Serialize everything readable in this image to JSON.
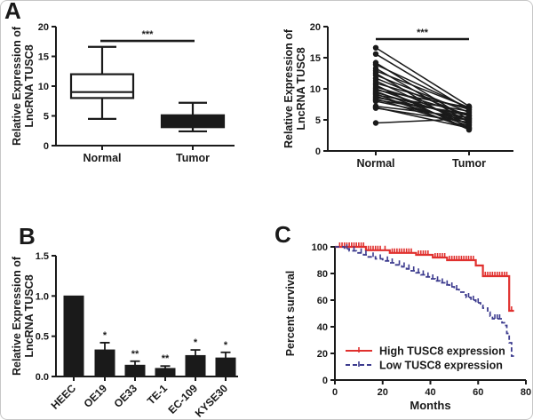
{
  "figure": {
    "panel_labels": {
      "a": "A",
      "b": "B",
      "c": "C"
    },
    "ink_color": "#1a1a1a",
    "border_color": "#c6c6c6"
  },
  "chart_data": [
    {
      "id": "panel-a-boxplot",
      "type": "box",
      "ylabel": [
        "Relative Expression of",
        "LncRNA TUSC8"
      ],
      "ylim": [
        0,
        20
      ],
      "yticks": [
        "0",
        "5",
        "10",
        "15",
        "20"
      ],
      "categories": [
        "Normal",
        "Tumor"
      ],
      "boxes": [
        {
          "category": "Normal",
          "whisker_low": 4.5,
          "q1": 8.0,
          "median": 9.0,
          "q3": 12.0,
          "whisker_high": 16.6,
          "fill": "#ffffff"
        },
        {
          "category": "Tumor",
          "whisker_low": 2.4,
          "q1": 3.1,
          "median": 4.2,
          "q3": 5.1,
          "whisker_high": 7.2,
          "fill": "#1a1a1a"
        }
      ],
      "significance": {
        "label": "***",
        "y": 17.6
      }
    },
    {
      "id": "panel-a-paired",
      "type": "paired-line",
      "ylabel": [
        "Relative Expression of",
        "LncRNA TUSC8"
      ],
      "ylim": [
        0,
        20
      ],
      "yticks": [
        "0",
        "5",
        "10",
        "15",
        "20"
      ],
      "categories": [
        "Normal",
        "Tumor"
      ],
      "pairs": [
        [
          16.6,
          7.2
        ],
        [
          15.6,
          6.6
        ],
        [
          14.2,
          5.0
        ],
        [
          13.9,
          6.9
        ],
        [
          13.3,
          4.6
        ],
        [
          12.9,
          7.0
        ],
        [
          12.5,
          3.6
        ],
        [
          12.2,
          6.2
        ],
        [
          11.7,
          5.6
        ],
        [
          11.3,
          4.2
        ],
        [
          10.9,
          6.7
        ],
        [
          10.6,
          3.4
        ],
        [
          10.3,
          5.8
        ],
        [
          10.0,
          4.8
        ],
        [
          9.8,
          7.0
        ],
        [
          9.6,
          4.0
        ],
        [
          9.4,
          5.2
        ],
        [
          9.2,
          3.5
        ],
        [
          9.0,
          6.4
        ],
        [
          8.8,
          4.4
        ],
        [
          8.6,
          5.7
        ],
        [
          8.4,
          3.8
        ],
        [
          8.2,
          6.0
        ],
        [
          8.0,
          4.9
        ],
        [
          7.2,
          5.4
        ],
        [
          7.0,
          3.7
        ],
        [
          6.9,
          4.6
        ],
        [
          4.5,
          5.2
        ]
      ],
      "significance": {
        "label": "***",
        "y": 18.0
      }
    },
    {
      "id": "panel-b-bars",
      "type": "bar",
      "ylabel": [
        "Relative Expression of",
        "LncRNA TUSC8"
      ],
      "ylim": [
        0,
        1.5
      ],
      "yticks": [
        "0.0",
        "0.5",
        "1.0",
        "1.5"
      ],
      "categories": [
        "HEEC",
        "OE19",
        "OE33",
        "TE-1",
        "EC-109",
        "KYSE30"
      ],
      "values": [
        1.0,
        0.33,
        0.14,
        0.1,
        0.26,
        0.23
      ],
      "errors": [
        0,
        0.09,
        0.05,
        0.03,
        0.07,
        0.07
      ],
      "significance": [
        "",
        "*",
        "**",
        "**",
        "*",
        "*"
      ],
      "bar_color": "#1a1a1a"
    },
    {
      "id": "panel-c-survival",
      "type": "km",
      "xlabel": "Months",
      "ylabel": [
        "Percent survival"
      ],
      "xlim": [
        0,
        80
      ],
      "ylim": [
        0,
        100
      ],
      "xticks": [
        "0",
        "20",
        "40",
        "60",
        "80"
      ],
      "yticks": [
        "0",
        "20",
        "40",
        "60",
        "80",
        "100"
      ],
      "legend_position": "lower-left",
      "series": [
        {
          "name": "High TUSC8 expression",
          "color": "#e0302e",
          "style": "solid",
          "steps": [
            [
              0,
              100
            ],
            [
              13,
              100
            ],
            [
              13,
              97.5
            ],
            [
              23,
              97.5
            ],
            [
              23,
              95.5
            ],
            [
              34,
              95.5
            ],
            [
              34,
              94
            ],
            [
              41,
              94
            ],
            [
              41,
              92
            ],
            [
              47,
              92
            ],
            [
              47,
              90
            ],
            [
              59,
              90
            ],
            [
              59,
              86
            ],
            [
              62,
              86
            ],
            [
              62,
              78
            ],
            [
              73,
              78
            ],
            [
              73,
              52
            ],
            [
              75,
              52
            ]
          ],
          "censors": [
            2,
            3,
            4,
            5,
            6,
            7,
            8,
            9,
            10,
            11,
            12,
            14,
            15,
            16,
            17,
            18,
            19,
            21,
            24,
            25,
            26,
            27,
            28,
            29,
            30,
            31,
            32,
            35,
            36,
            37,
            38,
            39,
            42,
            43,
            44,
            45,
            46,
            48,
            49,
            50,
            51,
            52,
            53,
            54,
            55,
            56,
            57,
            58,
            63,
            64,
            65,
            66,
            67,
            68,
            69,
            70,
            71,
            72,
            74
          ]
        },
        {
          "name": "Low TUSC8 expression",
          "color": "#3c3b8e",
          "style": "dashed",
          "steps": [
            [
              0,
              100
            ],
            [
              4,
              100
            ],
            [
              4,
              98.5
            ],
            [
              6,
              98.5
            ],
            [
              6,
              97
            ],
            [
              9,
              97
            ],
            [
              9,
              95.5
            ],
            [
              12,
              95.5
            ],
            [
              12,
              94
            ],
            [
              14,
              94
            ],
            [
              14,
              92.5
            ],
            [
              17,
              92.5
            ],
            [
              17,
              91
            ],
            [
              20,
              91
            ],
            [
              20,
              89.5
            ],
            [
              23,
              89.5
            ],
            [
              23,
              88
            ],
            [
              25,
              88
            ],
            [
              25,
              86.5
            ],
            [
              28,
              86.5
            ],
            [
              28,
              85
            ],
            [
              30,
              85
            ],
            [
              30,
              83.5
            ],
            [
              32,
              83.5
            ],
            [
              32,
              82
            ],
            [
              34,
              82
            ],
            [
              34,
              80.5
            ],
            [
              36,
              80.5
            ],
            [
              36,
              79
            ],
            [
              38,
              79
            ],
            [
              38,
              77.5
            ],
            [
              40,
              77.5
            ],
            [
              40,
              76
            ],
            [
              42,
              76
            ],
            [
              42,
              74.5
            ],
            [
              44,
              74.5
            ],
            [
              44,
              73
            ],
            [
              46,
              73
            ],
            [
              46,
              71.5
            ],
            [
              48,
              71.5
            ],
            [
              48,
              70
            ],
            [
              50,
              70
            ],
            [
              50,
              68
            ],
            [
              52,
              68
            ],
            [
              52,
              66
            ],
            [
              54,
              66
            ],
            [
              54,
              64
            ],
            [
              55,
              64
            ],
            [
              55,
              62
            ],
            [
              57,
              62
            ],
            [
              57,
              60
            ],
            [
              59,
              60
            ],
            [
              59,
              58
            ],
            [
              61,
              58
            ],
            [
              61,
              56
            ],
            [
              62,
              56
            ],
            [
              62,
              54
            ],
            [
              64,
              54
            ],
            [
              64,
              51
            ],
            [
              65,
              51
            ],
            [
              65,
              48
            ],
            [
              66,
              48
            ],
            [
              66,
              46
            ],
            [
              70,
              46
            ],
            [
              70,
              43
            ],
            [
              71,
              43
            ],
            [
              71,
              41
            ],
            [
              72,
              41
            ],
            [
              72,
              35
            ],
            [
              73,
              35
            ],
            [
              73,
              28
            ],
            [
              74,
              28
            ],
            [
              74,
              18
            ],
            [
              75,
              18
            ]
          ],
          "censors": [
            5,
            8,
            11,
            13,
            16,
            19,
            22,
            24,
            27,
            29,
            31,
            33,
            35,
            37,
            39,
            41,
            43,
            45,
            47,
            49,
            51,
            56,
            58,
            60,
            67,
            68,
            69
          ]
        }
      ]
    }
  ]
}
